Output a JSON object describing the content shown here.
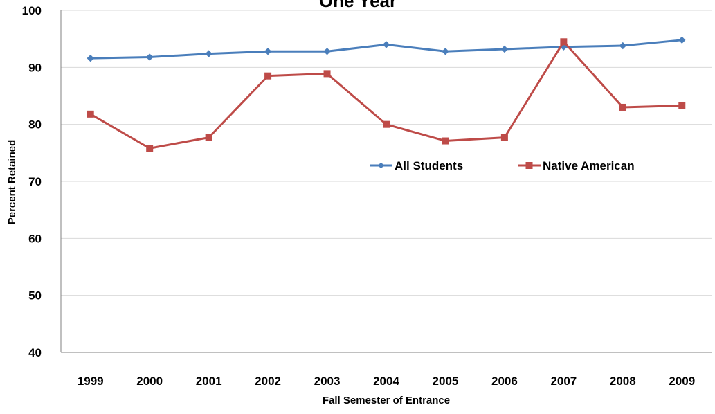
{
  "chart_data": {
    "type": "line",
    "title": "One Year",
    "xlabel": "Fall Semester of Entrance",
    "ylabel": "Percent Retained",
    "categories": [
      "1999",
      "2000",
      "2001",
      "2002",
      "2003",
      "2004",
      "2005",
      "2006",
      "2007",
      "2008",
      "2009"
    ],
    "ylim": [
      40,
      100
    ],
    "yticks": [
      "40",
      "50",
      "60",
      "70",
      "80",
      "90",
      "100"
    ],
    "grid": true,
    "legend_position": "center-right",
    "series": [
      {
        "name": "All Students",
        "color": "#4a7ebb",
        "marker": "diamond",
        "values": [
          91.6,
          91.8,
          92.4,
          92.8,
          92.8,
          94.0,
          92.8,
          93.2,
          93.6,
          93.8,
          94.8
        ]
      },
      {
        "name": "Native American",
        "color": "#be4b48",
        "marker": "square",
        "values": [
          81.8,
          75.8,
          77.7,
          88.5,
          88.9,
          80.0,
          77.1,
          77.7,
          94.5,
          83.0,
          83.3
        ]
      }
    ]
  }
}
